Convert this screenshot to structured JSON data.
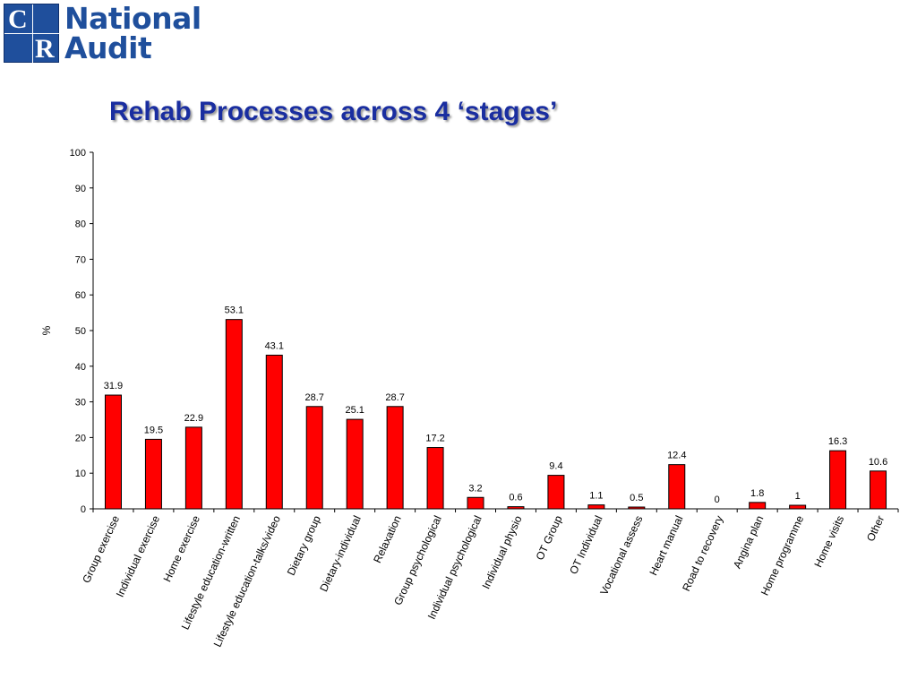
{
  "logo": {
    "letters": [
      "C",
      "R"
    ],
    "line1": "National",
    "line2": "Audit"
  },
  "title": "Rehab Processes across 4 ‘stages’",
  "colors": {
    "bar": "#ff0000",
    "bar_outline": "#000000",
    "title": "#1a2ea0",
    "logo": "#1f4f9c"
  },
  "chart_data": {
    "type": "bar",
    "ylabel": "%",
    "xlabel": "",
    "ylim": [
      0,
      100
    ],
    "yticks": [
      0,
      10,
      20,
      30,
      40,
      50,
      60,
      70,
      80,
      90,
      100
    ],
    "grid": false,
    "legend": "none",
    "categories": [
      "Group exercise",
      "Individual exercise",
      "Home exercise",
      "Lifestyle education-written",
      "Lifestyle education-talks/video",
      "Dietary group",
      "Dietary-individual",
      "Relaxation",
      "Group psychological",
      "Individual psychological",
      "Individual physio",
      "OT Group",
      "OT Individual",
      "Vocational assess",
      "Heart manual",
      "Road to recovery",
      "Angina plan",
      "Home programme",
      "Home visits",
      "Other"
    ],
    "values": [
      31.9,
      19.5,
      22.9,
      53.1,
      43.1,
      28.7,
      25.1,
      28.7,
      17.2,
      3.2,
      0.6,
      9.4,
      1.1,
      0.5,
      12.4,
      0,
      1.8,
      1,
      16.3,
      10.6
    ]
  }
}
